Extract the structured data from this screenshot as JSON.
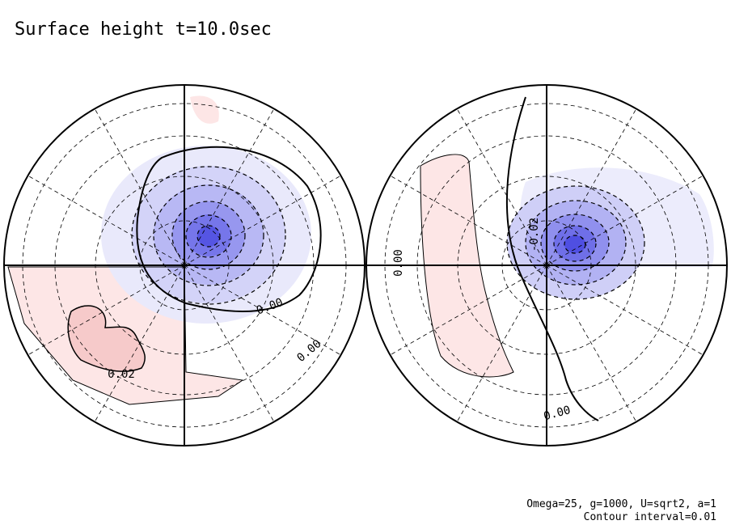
{
  "chart_data": {
    "type": "contour",
    "title": "Surface height t=10.0sec",
    "projection": "polar stereographic, two hemispheres",
    "contour_interval": 0.01,
    "hemispheres": [
      {
        "name": "left",
        "features": [
          {
            "kind": "negative",
            "peak": -0.06,
            "location": "upper-right quadrant"
          },
          {
            "kind": "positive",
            "peak": 0.03,
            "location": "lower-left quadrant"
          }
        ],
        "contour_labels": [
          "0.00",
          "0.00",
          "0.02"
        ]
      },
      {
        "name": "right",
        "features": [
          {
            "kind": "negative",
            "peak": -0.07,
            "location": "upper-right quadrant"
          },
          {
            "kind": "positive",
            "peak": 0.01,
            "location": "left band"
          }
        ],
        "contour_labels": [
          "-0.02",
          "0.00",
          "0.00"
        ]
      }
    ],
    "colors": {
      "negative": "#5a5af0",
      "positive": "#f4c9c9",
      "line": "#000000"
    }
  },
  "footer": {
    "params": "Omega=25, g=1000, U=sqrt2, a=1",
    "interval": "Contour interval=0.01"
  }
}
